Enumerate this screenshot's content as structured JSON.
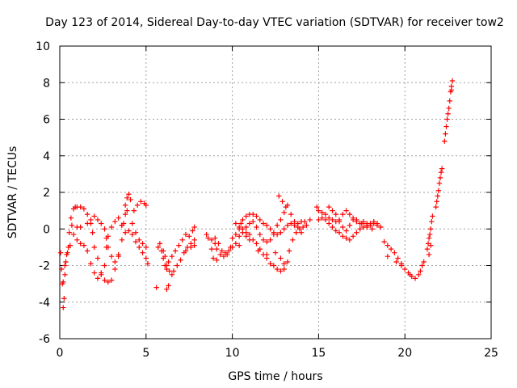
{
  "chart_data": {
    "type": "scatter",
    "title": "Day 123 of 2014, Sidereal Day-to-day VTEC variation (SDTVAR) for receiver tow2",
    "xlabel": "GPS time / hours",
    "ylabel": "SDTVAR / TECUs",
    "xlim": [
      0,
      25
    ],
    "ylim": [
      -6,
      10
    ],
    "xticks": [
      "0",
      "5",
      "10",
      "15",
      "20",
      "25"
    ],
    "yticks": [
      "-6",
      "-4",
      "-2",
      "0",
      "2",
      "4",
      "6",
      "8",
      "10"
    ],
    "grid": true,
    "marker": "+",
    "color": "#ff0000",
    "series": [
      {
        "name": "tow2",
        "points": [
          [
            0.05,
            -1.3
          ],
          [
            0.1,
            -2.2
          ],
          [
            0.15,
            -3.0
          ],
          [
            0.2,
            -4.3
          ],
          [
            0.25,
            -3.8
          ],
          [
            0.3,
            -2.5
          ],
          [
            0.35,
            -1.8
          ],
          [
            0.4,
            -1.4
          ],
          [
            0.5,
            -1.0
          ],
          [
            0.55,
            -0.2
          ],
          [
            0.65,
            0.6
          ],
          [
            0.8,
            1.1
          ],
          [
            0.9,
            1.2
          ],
          [
            1.0,
            1.2
          ],
          [
            1.2,
            1.2
          ],
          [
            1.4,
            1.1
          ],
          [
            1.6,
            0.8
          ],
          [
            1.8,
            0.3
          ],
          [
            1.9,
            -0.2
          ],
          [
            2.0,
            -1.0
          ],
          [
            2.2,
            -1.6
          ],
          [
            2.4,
            -2.4
          ],
          [
            2.6,
            -2.8
          ],
          [
            2.8,
            -2.9
          ],
          [
            3.0,
            -2.8
          ],
          [
            3.2,
            -2.2
          ],
          [
            3.4,
            -1.5
          ],
          [
            3.6,
            0.2
          ],
          [
            3.8,
            1.3
          ],
          [
            3.9,
            1.7
          ],
          [
            4.0,
            1.9
          ],
          [
            4.1,
            1.6
          ],
          [
            4.3,
            1.0
          ],
          [
            4.5,
            1.3
          ],
          [
            4.7,
            1.5
          ],
          [
            4.9,
            1.4
          ],
          [
            5.0,
            1.3
          ],
          [
            0.2,
            -2.9
          ],
          [
            0.3,
            -2.0
          ],
          [
            0.45,
            -1.3
          ],
          [
            0.6,
            -0.9
          ],
          [
            0.7,
            0.2
          ],
          [
            0.8,
            -0.3
          ],
          [
            1.0,
            -0.6
          ],
          [
            1.2,
            -0.8
          ],
          [
            1.4,
            -0.9
          ],
          [
            1.6,
            -1.2
          ],
          [
            1.8,
            -1.9
          ],
          [
            2.0,
            -2.4
          ],
          [
            2.2,
            -2.7
          ],
          [
            2.4,
            -2.5
          ],
          [
            2.6,
            -2.0
          ],
          [
            2.7,
            -1.0
          ],
          [
            2.8,
            -0.4
          ],
          [
            3.0,
            0.1
          ],
          [
            3.2,
            0.4
          ],
          [
            3.4,
            0.6
          ],
          [
            3.6,
            0.2
          ],
          [
            3.8,
            -0.2
          ],
          [
            4.0,
            -0.1
          ],
          [
            4.2,
            -0.3
          ],
          [
            4.4,
            -0.7
          ],
          [
            4.6,
            -1.0
          ],
          [
            4.8,
            -1.3
          ],
          [
            5.0,
            -1.6
          ],
          [
            5.1,
            -1.9
          ],
          [
            1.0,
            0.1
          ],
          [
            1.2,
            0.1
          ],
          [
            1.6,
            0.3
          ],
          [
            1.8,
            0.5
          ],
          [
            2.0,
            0.7
          ],
          [
            2.2,
            0.5
          ],
          [
            2.4,
            0.3
          ],
          [
            2.6,
            0.0
          ],
          [
            2.7,
            -0.5
          ],
          [
            2.8,
            -1.0
          ],
          [
            3.0,
            -1.5
          ],
          [
            3.2,
            -1.8
          ],
          [
            3.4,
            -1.4
          ],
          [
            3.6,
            -0.6
          ],
          [
            3.7,
            0.3
          ],
          [
            3.8,
            0.8
          ],
          [
            3.9,
            1.0
          ],
          [
            4.2,
            0.3
          ],
          [
            4.4,
            -0.2
          ],
          [
            4.6,
            -0.6
          ],
          [
            4.8,
            -0.8
          ],
          [
            5.0,
            -1.0
          ],
          [
            5.6,
            -3.2
          ],
          [
            5.7,
            -1.0
          ],
          [
            5.8,
            -0.8
          ],
          [
            5.9,
            -1.2
          ],
          [
            6.0,
            -1.6
          ],
          [
            6.1,
            -2.0
          ],
          [
            6.2,
            -2.2
          ],
          [
            6.3,
            -1.8
          ],
          [
            6.5,
            -1.5
          ],
          [
            6.7,
            -1.2
          ],
          [
            6.9,
            -0.9
          ],
          [
            7.1,
            -0.6
          ],
          [
            7.3,
            -0.3
          ],
          [
            7.5,
            -0.4
          ],
          [
            7.7,
            -0.1
          ],
          [
            7.8,
            0.1
          ],
          [
            6.0,
            -1.2
          ],
          [
            6.1,
            -1.5
          ],
          [
            6.2,
            -2.0
          ],
          [
            6.35,
            -2.3
          ],
          [
            6.5,
            -2.5
          ],
          [
            6.6,
            -2.3
          ],
          [
            6.8,
            -2.0
          ],
          [
            7.0,
            -1.7
          ],
          [
            7.2,
            -1.3
          ],
          [
            7.4,
            -1.0
          ],
          [
            7.6,
            -0.8
          ],
          [
            7.8,
            -0.6
          ],
          [
            6.2,
            -3.3
          ],
          [
            6.3,
            -3.1
          ],
          [
            7.3,
            -1.2
          ],
          [
            7.6,
            -1.0
          ],
          [
            7.8,
            -0.9
          ],
          [
            8.5,
            -0.3
          ],
          [
            8.6,
            -0.5
          ],
          [
            8.8,
            -0.6
          ],
          [
            9.0,
            -0.8
          ],
          [
            9.1,
            -1.1
          ],
          [
            9.3,
            -1.4
          ],
          [
            9.5,
            -1.5
          ],
          [
            9.7,
            -1.4
          ],
          [
            9.9,
            -1.0
          ],
          [
            10.0,
            -0.5
          ],
          [
            10.2,
            -0.3
          ],
          [
            10.4,
            0.0
          ],
          [
            10.5,
            0.3
          ],
          [
            10.6,
            0.5
          ],
          [
            10.8,
            0.7
          ],
          [
            11.0,
            0.8
          ],
          [
            11.2,
            0.8
          ],
          [
            11.4,
            0.7
          ],
          [
            11.6,
            0.5
          ],
          [
            11.8,
            0.3
          ],
          [
            12.0,
            0.2
          ],
          [
            12.2,
            0.0
          ],
          [
            12.4,
            -0.2
          ],
          [
            12.6,
            -0.3
          ],
          [
            12.8,
            -0.2
          ],
          [
            13.0,
            0.0
          ],
          [
            13.2,
            0.2
          ],
          [
            13.4,
            0.3
          ],
          [
            13.6,
            0.2
          ],
          [
            13.8,
            0.3
          ],
          [
            14.0,
            0.4
          ],
          [
            14.2,
            0.4
          ],
          [
            9.0,
            -0.5
          ],
          [
            9.2,
            -0.8
          ],
          [
            9.4,
            -1.2
          ],
          [
            9.6,
            -1.3
          ],
          [
            9.8,
            -1.2
          ],
          [
            10.0,
            -1.0
          ],
          [
            10.2,
            -0.8
          ],
          [
            10.4,
            -0.4
          ],
          [
            10.6,
            -0.2
          ],
          [
            10.8,
            0.1
          ],
          [
            11.0,
            0.3
          ],
          [
            11.2,
            0.4
          ],
          [
            11.4,
            0.1
          ],
          [
            11.6,
            -0.3
          ],
          [
            11.8,
            -0.6
          ],
          [
            12.0,
            -0.7
          ],
          [
            12.2,
            -0.6
          ],
          [
            12.4,
            -0.3
          ],
          [
            12.6,
            0.2
          ],
          [
            12.8,
            0.5
          ],
          [
            13.0,
            0.9
          ],
          [
            13.2,
            1.3
          ],
          [
            13.4,
            0.8
          ],
          [
            13.6,
            0.4
          ],
          [
            13.8,
            0.1
          ],
          [
            14.0,
            -0.2
          ],
          [
            10.2,
            0.3
          ],
          [
            10.4,
            0.1
          ],
          [
            10.6,
            0.0
          ],
          [
            10.8,
            -0.2
          ],
          [
            11.0,
            -0.3
          ],
          [
            11.2,
            -0.6
          ],
          [
            11.4,
            -0.8
          ],
          [
            11.6,
            -1.1
          ],
          [
            11.8,
            -1.4
          ],
          [
            12.0,
            -1.6
          ],
          [
            12.2,
            -1.9
          ],
          [
            12.4,
            -2.0
          ],
          [
            12.6,
            -2.2
          ],
          [
            12.8,
            -2.3
          ],
          [
            13.0,
            -2.2
          ],
          [
            13.2,
            -1.8
          ],
          [
            13.3,
            -1.2
          ],
          [
            13.5,
            -0.6
          ],
          [
            13.7,
            -0.2
          ],
          [
            13.9,
            0.0
          ],
          [
            14.1,
            0.1
          ],
          [
            14.3,
            0.2
          ],
          [
            14.5,
            0.5
          ],
          [
            8.8,
            -1.1
          ],
          [
            8.9,
            -1.6
          ],
          [
            9.1,
            -1.7
          ],
          [
            10.4,
            -0.9
          ],
          [
            10.8,
            -0.4
          ],
          [
            11.0,
            -0.6
          ],
          [
            11.5,
            -1.2
          ],
          [
            12.0,
            -1.4
          ],
          [
            12.5,
            -1.3
          ],
          [
            12.8,
            -1.6
          ],
          [
            13.0,
            -1.9
          ],
          [
            12.7,
            1.8
          ],
          [
            12.9,
            1.5
          ],
          [
            13.1,
            1.2
          ],
          [
            14.9,
            1.2
          ],
          [
            15.0,
            1.0
          ],
          [
            15.2,
            0.9
          ],
          [
            15.4,
            0.8
          ],
          [
            15.6,
            0.6
          ],
          [
            15.8,
            0.5
          ],
          [
            16.0,
            0.4
          ],
          [
            16.2,
            0.5
          ],
          [
            16.4,
            0.8
          ],
          [
            16.6,
            1.0
          ],
          [
            16.8,
            0.8
          ],
          [
            17.0,
            0.5
          ],
          [
            17.2,
            0.4
          ],
          [
            17.4,
            0.3
          ],
          [
            17.6,
            0.4
          ],
          [
            17.8,
            0.3
          ],
          [
            18.0,
            0.2
          ],
          [
            18.2,
            0.3
          ],
          [
            18.4,
            0.2
          ],
          [
            18.6,
            0.1
          ],
          [
            15.0,
            0.5
          ],
          [
            15.2,
            0.6
          ],
          [
            15.4,
            0.5
          ],
          [
            15.6,
            0.3
          ],
          [
            15.8,
            0.1
          ],
          [
            16.0,
            -0.1
          ],
          [
            16.2,
            -0.2
          ],
          [
            16.4,
            -0.4
          ],
          [
            16.6,
            -0.5
          ],
          [
            16.8,
            -0.6
          ],
          [
            17.0,
            -0.4
          ],
          [
            17.2,
            -0.2
          ],
          [
            17.4,
            0.0
          ],
          [
            17.6,
            0.1
          ],
          [
            17.8,
            0.2
          ],
          [
            18.0,
            0.3
          ],
          [
            18.2,
            0.4
          ],
          [
            18.4,
            0.3
          ],
          [
            15.6,
            1.2
          ],
          [
            15.8,
            1.0
          ],
          [
            16.0,
            0.8
          ],
          [
            16.2,
            0.4
          ],
          [
            16.4,
            0.1
          ],
          [
            16.6,
            -0.1
          ],
          [
            16.8,
            0.2
          ],
          [
            17.0,
            0.6
          ],
          [
            17.2,
            0.5
          ],
          [
            17.5,
            0.3
          ],
          [
            17.8,
            0.1
          ],
          [
            18.1,
            0.0
          ],
          [
            18.8,
            -0.7
          ],
          [
            19.0,
            -0.9
          ],
          [
            19.2,
            -1.1
          ],
          [
            19.4,
            -1.3
          ],
          [
            19.6,
            -1.6
          ],
          [
            19.8,
            -1.9
          ],
          [
            20.0,
            -2.2
          ],
          [
            20.2,
            -2.4
          ],
          [
            20.4,
            -2.6
          ],
          [
            20.6,
            -2.7
          ],
          [
            20.8,
            -2.5
          ],
          [
            20.9,
            -2.3
          ],
          [
            21.0,
            -2.0
          ],
          [
            21.1,
            -1.8
          ],
          [
            19.0,
            -1.5
          ],
          [
            19.5,
            -1.8
          ],
          [
            19.8,
            -2.0
          ],
          [
            20.3,
            -2.5
          ],
          [
            21.3,
            -1.1
          ],
          [
            21.35,
            -0.8
          ],
          [
            21.4,
            -0.5
          ],
          [
            21.45,
            -0.3
          ],
          [
            21.5,
            0.0
          ],
          [
            21.55,
            0.4
          ],
          [
            21.6,
            0.7
          ],
          [
            21.4,
            -1.4
          ],
          [
            21.5,
            -0.9
          ],
          [
            21.8,
            1.2
          ],
          [
            21.85,
            1.5
          ],
          [
            21.9,
            1.8
          ],
          [
            21.95,
            2.1
          ],
          [
            22.0,
            2.5
          ],
          [
            22.05,
            2.8
          ],
          [
            22.1,
            3.1
          ],
          [
            22.15,
            3.3
          ],
          [
            22.3,
            4.8
          ],
          [
            22.35,
            5.2
          ],
          [
            22.4,
            5.6
          ],
          [
            22.45,
            6.0
          ],
          [
            22.5,
            6.3
          ],
          [
            22.55,
            6.6
          ],
          [
            22.6,
            7.0
          ],
          [
            22.65,
            7.5
          ],
          [
            22.7,
            7.8
          ],
          [
            22.75,
            8.1
          ],
          [
            22.7,
            7.6
          ]
        ]
      }
    ]
  }
}
